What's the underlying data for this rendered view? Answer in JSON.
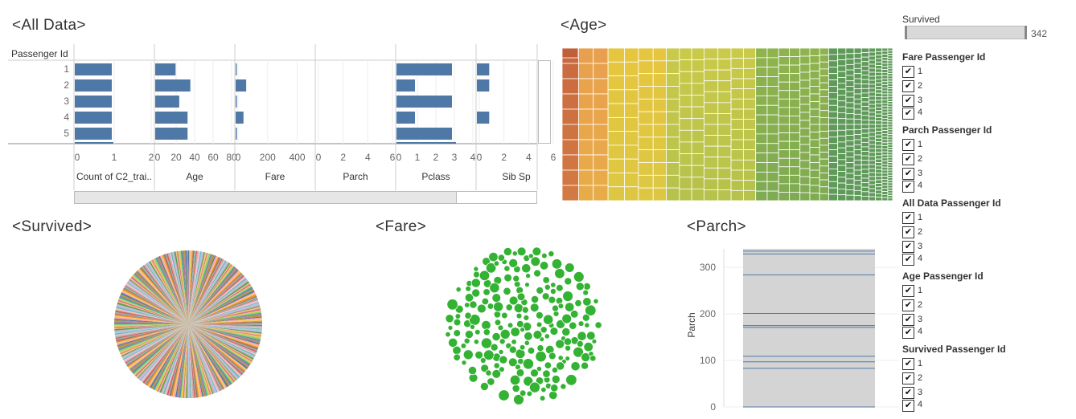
{
  "sheets": {
    "all_data_title": "<All Data>",
    "age_title": "<Age>",
    "survived_title": "<Survived>",
    "fare_title": "<Fare>",
    "parch_title": "<Parch>"
  },
  "all_data": {
    "row_header": "Passenger Id",
    "rows": [
      "1",
      "2",
      "3",
      "4",
      "5"
    ],
    "columns": [
      {
        "label": "Count of C2_trai..",
        "ticks": [
          "0",
          "1",
          "2"
        ],
        "max": 2,
        "values": [
          1,
          1,
          1,
          1,
          1
        ]
      },
      {
        "label": "Age",
        "ticks": [
          "0",
          "20",
          "40",
          "60",
          "80"
        ],
        "max": 80,
        "values": [
          22,
          38,
          26,
          35,
          35
        ]
      },
      {
        "label": "Fare",
        "ticks": [
          "0",
          "200",
          "400"
        ],
        "max": 500,
        "values": [
          7.25,
          71.28,
          7.93,
          53.1,
          8.05
        ]
      },
      {
        "label": "Parch",
        "ticks": [
          "0",
          "2",
          "4",
          "6"
        ],
        "max": 6,
        "values": [
          0,
          0,
          0,
          0,
          0
        ]
      },
      {
        "label": "Pclass",
        "ticks": [
          "0",
          "1",
          "2",
          "3",
          "4"
        ],
        "max": 4,
        "values": [
          3,
          1,
          3,
          1,
          3
        ]
      },
      {
        "label": "Sib Sp",
        "ticks": [
          "0",
          "2",
          "4",
          "6"
        ],
        "max": 6,
        "values": [
          1,
          1,
          0,
          1,
          0
        ]
      }
    ],
    "bar_color": "#4e79a7"
  },
  "filters": {
    "survived_label": "Survived",
    "survived_value": "342",
    "groups": [
      {
        "title": "Fare Passenger Id",
        "items": [
          "1",
          "2",
          "3",
          "4"
        ]
      },
      {
        "title": "Parch Passenger Id",
        "items": [
          "1",
          "2",
          "3",
          "4"
        ]
      },
      {
        "title": "All Data Passenger Id",
        "items": [
          "1",
          "2",
          "3",
          "4"
        ]
      },
      {
        "title": "Age Passenger Id",
        "items": [
          "1",
          "2",
          "3",
          "4"
        ]
      },
      {
        "title": "Survived Passenger Id",
        "items": [
          "1",
          "2",
          "3",
          "4"
        ]
      }
    ],
    "check_glyph": "✔"
  },
  "parch_chart": {
    "ylabel": "Parch",
    "ticks": [
      "0",
      "100",
      "200",
      "300"
    ],
    "ylim": [
      0,
      340
    ],
    "lines": [
      0,
      83,
      97,
      109,
      171,
      175,
      201,
      284,
      329,
      335
    ],
    "band_color": "#d4d4d4",
    "line_color": "#4e79a7"
  },
  "fare_bubble": {
    "color": "#34b233"
  },
  "age_treemap": {
    "colors": [
      "#c9693f",
      "#e8a04e",
      "#e6c63e",
      "#c9c94a",
      "#8fb34e",
      "#5f9a5a"
    ]
  }
}
